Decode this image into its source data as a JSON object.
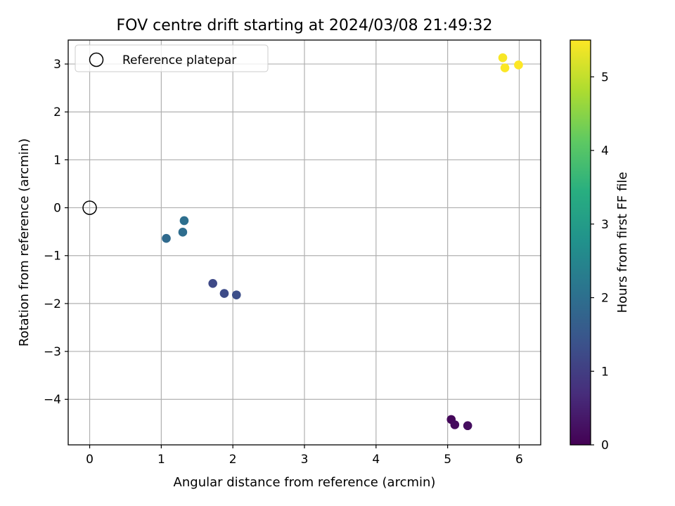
{
  "chart_data": {
    "type": "scatter",
    "title": "FOV centre drift starting at 2024/03/08 21:49:32",
    "xlabel": "Angular distance from reference (arcmin)",
    "ylabel": "Rotation from reference (arcmin)",
    "xlim": [
      -0.3,
      6.3
    ],
    "ylim": [
      -4.95,
      3.5
    ],
    "xticks": [
      0,
      1,
      2,
      3,
      4,
      5,
      6
    ],
    "xtick_labels": [
      "0",
      "1",
      "2",
      "3",
      "4",
      "5",
      "6"
    ],
    "yticks": [
      -4,
      -3,
      -2,
      -1,
      0,
      1,
      2,
      3
    ],
    "ytick_labels": [
      "−4",
      "−3",
      "−2",
      "−1",
      "0",
      "1",
      "2",
      "3"
    ],
    "grid": true,
    "legend": {
      "position": "top-left",
      "entries": [
        "Reference platepar"
      ]
    },
    "reference_point": {
      "x": 0,
      "y": 0,
      "label": "Reference platepar"
    },
    "colorbar": {
      "label": "Hours from first FF file",
      "range": [
        0,
        5.5
      ],
      "ticks": [
        0,
        1,
        2,
        3,
        4,
        5
      ],
      "tick_labels": [
        "0",
        "1",
        "2",
        "3",
        "4",
        "5"
      ],
      "colormap": "viridis"
    },
    "points": [
      {
        "x": 5.05,
        "y": -4.42,
        "hours": 0.1
      },
      {
        "x": 5.1,
        "y": -4.53,
        "hours": 0.15
      },
      {
        "x": 5.28,
        "y": -4.55,
        "hours": 0.2
      },
      {
        "x": 1.72,
        "y": -1.58,
        "hours": 1.2
      },
      {
        "x": 1.88,
        "y": -1.79,
        "hours": 1.25
      },
      {
        "x": 2.05,
        "y": -1.82,
        "hours": 1.3
      },
      {
        "x": 1.07,
        "y": -0.64,
        "hours": 1.9
      },
      {
        "x": 1.3,
        "y": -0.51,
        "hours": 1.95
      },
      {
        "x": 1.32,
        "y": -0.27,
        "hours": 2.0
      },
      {
        "x": 5.77,
        "y": 3.13,
        "hours": 5.45
      },
      {
        "x": 5.8,
        "y": 2.92,
        "hours": 5.48
      },
      {
        "x": 5.99,
        "y": 2.98,
        "hours": 5.5
      }
    ]
  }
}
